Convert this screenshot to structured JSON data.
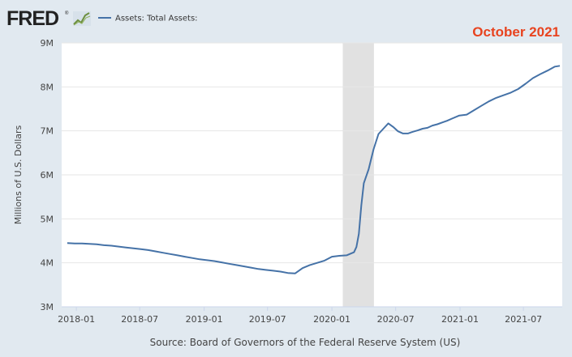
{
  "brand": {
    "name": "FRED",
    "registered": "®"
  },
  "chart_data": {
    "type": "line",
    "series": [
      {
        "name": "Assets: Total Assets:",
        "color": "#4572a7",
        "points": [
          [
            "2017-12-06",
            4.45
          ],
          [
            "2017-12-27",
            4.44
          ],
          [
            "2018-01-17",
            4.44
          ],
          [
            "2018-02-07",
            4.43
          ],
          [
            "2018-02-28",
            4.42
          ],
          [
            "2018-03-21",
            4.4
          ],
          [
            "2018-04-11",
            4.39
          ],
          [
            "2018-05-02",
            4.37
          ],
          [
            "2018-05-23",
            4.35
          ],
          [
            "2018-06-13",
            4.33
          ],
          [
            "2018-07-04",
            4.31
          ],
          [
            "2018-07-25",
            4.29
          ],
          [
            "2018-08-15",
            4.26
          ],
          [
            "2018-09-05",
            4.23
          ],
          [
            "2018-09-26",
            4.2
          ],
          [
            "2018-10-17",
            4.17
          ],
          [
            "2018-11-07",
            4.14
          ],
          [
            "2018-11-28",
            4.11
          ],
          [
            "2018-12-19",
            4.08
          ],
          [
            "2019-01-09",
            4.06
          ],
          [
            "2019-01-30",
            4.04
          ],
          [
            "2019-02-20",
            4.01
          ],
          [
            "2019-03-13",
            3.98
          ],
          [
            "2019-04-03",
            3.95
          ],
          [
            "2019-04-24",
            3.92
          ],
          [
            "2019-05-15",
            3.89
          ],
          [
            "2019-06-05",
            3.86
          ],
          [
            "2019-06-26",
            3.84
          ],
          [
            "2019-07-17",
            3.82
          ],
          [
            "2019-08-07",
            3.8
          ],
          [
            "2019-08-28",
            3.77
          ],
          [
            "2019-09-18",
            3.76
          ],
          [
            "2019-10-09",
            3.88
          ],
          [
            "2019-10-30",
            3.95
          ],
          [
            "2019-11-20",
            4.0
          ],
          [
            "2019-12-11",
            4.05
          ],
          [
            "2020-01-01",
            4.14
          ],
          [
            "2020-01-22",
            4.16
          ],
          [
            "2020-02-12",
            4.17
          ],
          [
            "2020-03-04",
            4.24
          ],
          [
            "2020-03-11",
            4.36
          ],
          [
            "2020-03-18",
            4.66
          ],
          [
            "2020-03-25",
            5.3
          ],
          [
            "2020-04-01",
            5.81
          ],
          [
            "2020-04-15",
            6.13
          ],
          [
            "2020-04-29",
            6.58
          ],
          [
            "2020-05-13",
            6.93
          ],
          [
            "2020-05-27",
            7.05
          ],
          [
            "2020-06-10",
            7.17
          ],
          [
            "2020-06-24",
            7.09
          ],
          [
            "2020-07-08",
            6.99
          ],
          [
            "2020-07-22",
            6.94
          ],
          [
            "2020-08-05",
            6.94
          ],
          [
            "2020-08-19",
            6.98
          ],
          [
            "2020-09-02",
            7.01
          ],
          [
            "2020-09-16",
            7.05
          ],
          [
            "2020-09-30",
            7.07
          ],
          [
            "2020-10-14",
            7.12
          ],
          [
            "2020-10-28",
            7.15
          ],
          [
            "2020-11-11",
            7.19
          ],
          [
            "2020-11-25",
            7.23
          ],
          [
            "2020-12-09",
            7.28
          ],
          [
            "2020-12-30",
            7.35
          ],
          [
            "2021-01-20",
            7.37
          ],
          [
            "2021-02-10",
            7.47
          ],
          [
            "2021-03-03",
            7.57
          ],
          [
            "2021-03-24",
            7.67
          ],
          [
            "2021-04-14",
            7.75
          ],
          [
            "2021-05-05",
            7.81
          ],
          [
            "2021-05-26",
            7.87
          ],
          [
            "2021-06-16",
            7.95
          ],
          [
            "2021-07-07",
            8.07
          ],
          [
            "2021-07-28",
            8.2
          ],
          [
            "2021-08-18",
            8.29
          ],
          [
            "2021-09-08",
            8.37
          ],
          [
            "2021-09-29",
            8.46
          ],
          [
            "2021-10-13",
            8.48
          ]
        ]
      }
    ],
    "xticks": [
      "2018-01",
      "2018-07",
      "2019-01",
      "2019-07",
      "2020-01",
      "2020-07",
      "2021-01",
      "2021-07"
    ],
    "ylim": [
      3,
      9
    ],
    "yticks": [
      3,
      4,
      5,
      6,
      7,
      8,
      9
    ],
    "ytick_labels": [
      "3M",
      "4M",
      "5M",
      "6M",
      "7M",
      "8M",
      "9M"
    ],
    "ylabel": "Millions of U.S. Dollars",
    "xlabel": "",
    "xrange": [
      "2017-11-20",
      "2021-10-20"
    ],
    "recession": {
      "start": "2020-02-01",
      "end": "2020-04-30",
      "color": "#e1e1e1"
    },
    "source": "Source: Board of Governors of the Federal Reserve System (US)",
    "annotation": {
      "text": "October 2021",
      "color": "#e8431f",
      "position": "top-right"
    },
    "grid": true,
    "legend_position": "top-left"
  }
}
